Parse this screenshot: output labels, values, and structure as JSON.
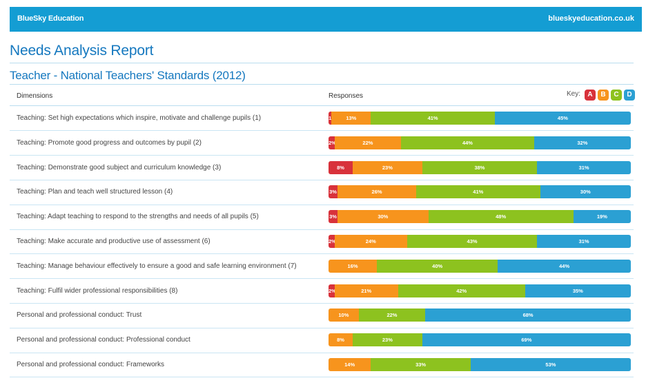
{
  "header": {
    "brand": "BlueSky Education",
    "url": "blueskyeducation.co.uk"
  },
  "report_title": "Needs Analysis Report",
  "section_title": "Teacher - National Teachers' Standards (2012)",
  "columns": {
    "dimensions": "Dimensions",
    "responses": "Responses"
  },
  "key": {
    "label": "Key:",
    "items": [
      {
        "letter": "A",
        "color": "#d8323b"
      },
      {
        "letter": "B",
        "color": "#f7941d"
      },
      {
        "letter": "C",
        "color": "#8dc21f"
      },
      {
        "letter": "D",
        "color": "#2ba0d3"
      }
    ]
  },
  "chart_data": {
    "type": "bar",
    "orientation": "horizontal",
    "stacked": true,
    "normalized_percent": true,
    "categories": [
      "Teaching: Set high expectations which inspire, motivate and challenge pupils (1)",
      "Teaching: Promote good progress and outcomes by pupil (2)",
      "Teaching: Demonstrate good subject and curriculum knowledge (3)",
      "Teaching: Plan and teach well structured lesson (4)",
      "Teaching: Adapt teaching to respond to the strengths and needs of all pupils (5)",
      "Teaching: Make accurate and productive use of assessment (6)",
      "Teaching: Manage behaviour effectively to ensure a good and safe learning environment (7)",
      "Teaching: Fulfil wider professional responsibilities (8)",
      "Personal and professional conduct: Trust",
      "Personal and professional conduct: Professional conduct",
      "Personal and professional conduct: Frameworks"
    ],
    "series": [
      {
        "name": "A",
        "color": "#d8323b",
        "values": [
          1,
          2,
          8,
          3,
          3,
          2,
          0,
          2,
          0,
          0,
          0
        ]
      },
      {
        "name": "B",
        "color": "#f7941d",
        "values": [
          13,
          22,
          23,
          26,
          30,
          24,
          16,
          21,
          10,
          8,
          14
        ]
      },
      {
        "name": "C",
        "color": "#8dc21f",
        "values": [
          41,
          44,
          38,
          41,
          48,
          43,
          40,
          42,
          22,
          23,
          33
        ]
      },
      {
        "name": "D",
        "color": "#2ba0d3",
        "values": [
          45,
          32,
          31,
          30,
          19,
          31,
          44,
          35,
          68,
          69,
          53
        ]
      }
    ],
    "data_labels": [
      [
        "1",
        "13%",
        "41%",
        "45%"
      ],
      [
        "2%",
        "22%",
        "44%",
        "32%"
      ],
      [
        "8%",
        "23%",
        "38%",
        "31%"
      ],
      [
        "3%",
        "26%",
        "41%",
        "30%"
      ],
      [
        "3%",
        "30%",
        "48%",
        "19%"
      ],
      [
        "2%",
        "24%",
        "43%",
        "31%"
      ],
      [
        "",
        "16%",
        "40%",
        "44%"
      ],
      [
        "2%",
        "21%",
        "42%",
        "35%"
      ],
      [
        "",
        "10%",
        "22%",
        "68%"
      ],
      [
        "",
        "8%",
        "23%",
        "69%"
      ],
      [
        "",
        "14%",
        "33%",
        "53%"
      ]
    ]
  }
}
